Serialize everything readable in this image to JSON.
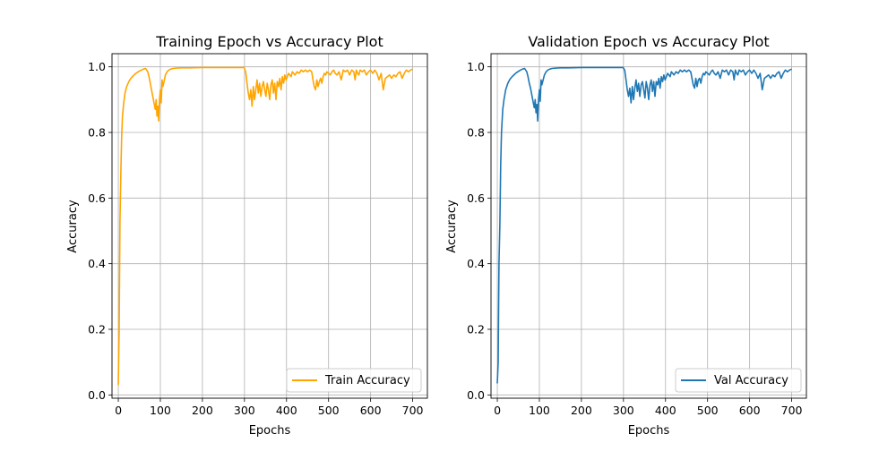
{
  "colors": {
    "train": "#ffa500",
    "val": "#1f77b4",
    "grid": "#b0b0b0"
  },
  "chart_data": [
    {
      "type": "line",
      "title": "Training Epoch vs Accuracy Plot",
      "xlabel": "Epochs",
      "ylabel": "Accuracy",
      "xlim": [
        -15,
        735
      ],
      "ylim": [
        -0.01,
        1.04
      ],
      "xticks": [
        0,
        100,
        200,
        300,
        400,
        500,
        600,
        700
      ],
      "yticks": [
        0.0,
        0.2,
        0.4,
        0.6,
        0.8,
        1.0
      ],
      "grid": true,
      "legend_position": "lower-right",
      "series": [
        {
          "name": "Train Accuracy",
          "color": "#ffa500",
          "x": [
            0,
            2,
            4,
            6,
            8,
            10,
            13,
            16,
            20,
            25,
            30,
            35,
            40,
            45,
            50,
            55,
            60,
            65,
            70,
            73,
            76,
            79,
            82,
            85,
            88,
            90,
            92,
            94,
            96,
            98,
            100,
            102,
            104,
            106,
            108,
            112,
            116,
            120,
            125,
            130,
            140,
            150,
            170,
            200,
            250,
            299,
            303,
            306,
            309,
            312,
            315,
            318,
            321,
            324,
            327,
            330,
            333,
            336,
            339,
            342,
            345,
            348,
            351,
            354,
            357,
            360,
            363,
            366,
            369,
            372,
            375,
            378,
            381,
            384,
            387,
            390,
            393,
            396,
            399,
            402,
            405,
            408,
            411,
            414,
            417,
            420,
            425,
            430,
            435,
            440,
            445,
            450,
            455,
            460,
            463,
            466,
            469,
            472,
            475,
            478,
            481,
            484,
            487,
            490,
            493,
            496,
            500,
            504,
            508,
            512,
            516,
            520,
            525,
            530,
            535,
            540,
            545,
            550,
            555,
            560,
            563,
            566,
            569,
            572,
            575,
            580,
            585,
            590,
            595,
            600,
            605,
            610,
            615,
            620,
            625,
            630,
            635,
            640,
            645,
            650,
            655,
            660,
            665,
            670,
            675,
            680,
            685,
            690,
            695,
            700
          ],
          "values": [
            0.03,
            0.2,
            0.53,
            0.68,
            0.79,
            0.85,
            0.89,
            0.92,
            0.94,
            0.955,
            0.965,
            0.972,
            0.978,
            0.983,
            0.987,
            0.99,
            0.993,
            0.995,
            0.985,
            0.97,
            0.95,
            0.93,
            0.91,
            0.89,
            0.87,
            0.9,
            0.85,
            0.88,
            0.835,
            0.9,
            0.93,
            0.89,
            0.96,
            0.94,
            0.95,
            0.975,
            0.985,
            0.99,
            0.993,
            0.995,
            0.996,
            0.997,
            0.997,
            0.998,
            0.998,
            0.998,
            0.985,
            0.95,
            0.92,
            0.9,
            0.93,
            0.88,
            0.94,
            0.9,
            0.93,
            0.96,
            0.92,
            0.95,
            0.91,
            0.94,
            0.955,
            0.93,
            0.91,
            0.95,
            0.93,
            0.9,
            0.945,
            0.96,
            0.92,
            0.95,
            0.9,
            0.955,
            0.94,
            0.965,
            0.93,
            0.97,
            0.95,
            0.975,
            0.96,
            0.97,
            0.98,
            0.975,
            0.97,
            0.985,
            0.98,
            0.975,
            0.985,
            0.98,
            0.99,
            0.985,
            0.99,
            0.985,
            0.99,
            0.985,
            0.96,
            0.94,
            0.93,
            0.96,
            0.94,
            0.955,
            0.965,
            0.95,
            0.97,
            0.98,
            0.975,
            0.985,
            0.98,
            0.975,
            0.985,
            0.99,
            0.98,
            0.975,
            0.985,
            0.96,
            0.99,
            0.985,
            0.99,
            0.975,
            0.99,
            0.985,
            0.96,
            0.99,
            0.98,
            0.975,
            0.99,
            0.985,
            0.99,
            0.975,
            0.985,
            0.99,
            0.98,
            0.99,
            0.98,
            0.96,
            0.98,
            0.93,
            0.965,
            0.97,
            0.975,
            0.965,
            0.975,
            0.97,
            0.98,
            0.985,
            0.965,
            0.98,
            0.99,
            0.985,
            0.99,
            0.993
          ]
        }
      ]
    },
    {
      "type": "line",
      "title": "Validation Epoch vs Accuracy Plot",
      "xlabel": "Epochs",
      "ylabel": "Accuracy",
      "xlim": [
        -15,
        735
      ],
      "ylim": [
        -0.01,
        1.04
      ],
      "xticks": [
        0,
        100,
        200,
        300,
        400,
        500,
        600,
        700
      ],
      "yticks": [
        0.0,
        0.2,
        0.4,
        0.6,
        0.8,
        1.0
      ],
      "grid": true,
      "legend_position": "lower-right",
      "series": [
        {
          "name": "Val Accuracy",
          "color": "#1f77b4",
          "x": [
            0,
            2,
            4,
            6,
            8,
            10,
            13,
            16,
            20,
            25,
            30,
            35,
            40,
            45,
            50,
            55,
            60,
            65,
            70,
            73,
            76,
            79,
            82,
            85,
            88,
            90,
            92,
            94,
            96,
            98,
            100,
            102,
            104,
            106,
            108,
            112,
            116,
            120,
            125,
            130,
            140,
            150,
            170,
            200,
            250,
            299,
            303,
            306,
            309,
            312,
            315,
            318,
            321,
            324,
            327,
            330,
            333,
            336,
            339,
            342,
            345,
            348,
            351,
            354,
            357,
            360,
            363,
            366,
            369,
            372,
            375,
            378,
            381,
            384,
            387,
            390,
            393,
            396,
            399,
            402,
            405,
            408,
            411,
            414,
            417,
            420,
            425,
            430,
            435,
            440,
            445,
            450,
            455,
            460,
            463,
            466,
            469,
            472,
            475,
            478,
            481,
            484,
            487,
            490,
            493,
            496,
            500,
            504,
            508,
            512,
            516,
            520,
            525,
            530,
            535,
            540,
            545,
            550,
            555,
            560,
            563,
            566,
            569,
            572,
            575,
            580,
            585,
            590,
            595,
            600,
            605,
            610,
            615,
            620,
            625,
            630,
            635,
            640,
            645,
            650,
            655,
            660,
            665,
            670,
            675,
            680,
            685,
            690,
            695,
            700
          ],
          "values": [
            0.035,
            0.1,
            0.4,
            0.52,
            0.7,
            0.8,
            0.87,
            0.9,
            0.93,
            0.95,
            0.962,
            0.97,
            0.976,
            0.982,
            0.986,
            0.99,
            0.993,
            0.995,
            0.985,
            0.97,
            0.95,
            0.935,
            0.915,
            0.895,
            0.875,
            0.9,
            0.86,
            0.885,
            0.835,
            0.9,
            0.93,
            0.895,
            0.96,
            0.945,
            0.955,
            0.975,
            0.985,
            0.99,
            0.993,
            0.995,
            0.996,
            0.997,
            0.997,
            0.998,
            0.998,
            0.998,
            0.99,
            0.96,
            0.93,
            0.91,
            0.935,
            0.89,
            0.94,
            0.9,
            0.935,
            0.96,
            0.925,
            0.95,
            0.91,
            0.945,
            0.955,
            0.93,
            0.905,
            0.955,
            0.935,
            0.9,
            0.945,
            0.96,
            0.925,
            0.955,
            0.91,
            0.955,
            0.945,
            0.965,
            0.935,
            0.97,
            0.955,
            0.975,
            0.96,
            0.97,
            0.98,
            0.975,
            0.97,
            0.985,
            0.98,
            0.975,
            0.985,
            0.98,
            0.99,
            0.985,
            0.99,
            0.985,
            0.99,
            0.985,
            0.965,
            0.945,
            0.935,
            0.965,
            0.94,
            0.96,
            0.965,
            0.95,
            0.97,
            0.98,
            0.975,
            0.985,
            0.98,
            0.975,
            0.985,
            0.99,
            0.98,
            0.975,
            0.985,
            0.965,
            0.99,
            0.985,
            0.99,
            0.975,
            0.99,
            0.985,
            0.96,
            0.99,
            0.98,
            0.975,
            0.99,
            0.985,
            0.99,
            0.975,
            0.985,
            0.99,
            0.98,
            0.99,
            0.98,
            0.965,
            0.98,
            0.93,
            0.965,
            0.97,
            0.975,
            0.965,
            0.975,
            0.97,
            0.98,
            0.985,
            0.965,
            0.98,
            0.99,
            0.985,
            0.99,
            0.993
          ]
        }
      ]
    }
  ]
}
